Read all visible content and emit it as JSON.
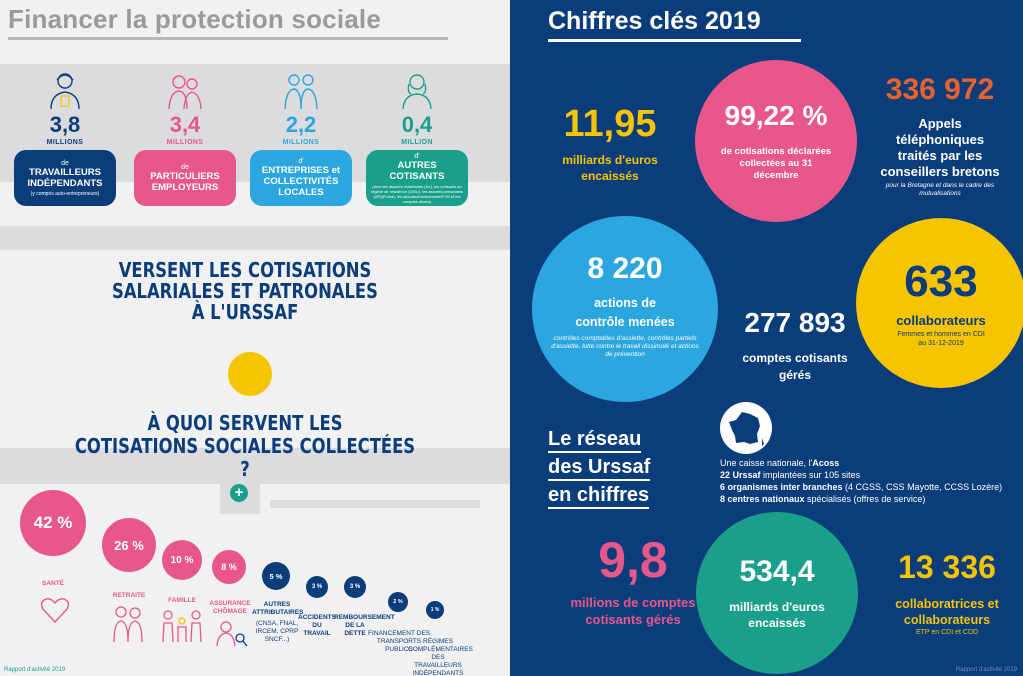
{
  "left": {
    "title": "Financer la protection sociale",
    "payers": [
      {
        "number": "3,8",
        "unit": "MILLIONS",
        "de": "de",
        "label": "TRAVAILLEURS INDÉPENDANTS",
        "sub": "(y compris auto-entrepreneurs)",
        "color": "#0a3d7a",
        "icon": "worker-icon"
      },
      {
        "number": "3,4",
        "unit": "MILLIONS",
        "de": "de",
        "label": "PARTICULIERS EMPLOYEURS",
        "sub": "",
        "color": "#e8578c",
        "icon": "elderly-couple-icon"
      },
      {
        "number": "2,2",
        "unit": "MILLIONS",
        "de": "d'",
        "label": "ENTREPRISES et COLLECTIVITÉS LOCALES",
        "sub": "",
        "color": "#2ca6de",
        "icon": "business-people-icon"
      },
      {
        "number": "0,4",
        "unit": "MILLION",
        "de": "d'",
        "label": "AUTRES COTISANTS",
        "sub": "(dont les assurés volontaires (AV), les cotisants au régime de résidence (CMU), les assurés personnels (AP)(Puma), les laboratoires/industrie/ETM et les comptes divers)",
        "color": "#1aa08a",
        "icon": "woman-icon"
      }
    ],
    "verse_lines": [
      "VERSENT LES COTISATIONS",
      "SALARIALES ET PATRONALES",
      "À L'URSSAF"
    ],
    "quoi_lines": [
      "À QUOI SERVENT LES",
      "COTISATIONS SOCIALES COLLECTÉES ?"
    ],
    "plus": "+",
    "branches": [
      {
        "pct": "42 %",
        "label": "SANTÉ",
        "color": "#e8578c",
        "label_color": "#e8578c"
      },
      {
        "pct": "26 %",
        "label": "RETRAITE",
        "color": "#e8578c",
        "label_color": "#e8578c"
      },
      {
        "pct": "10 %",
        "label": "FAMILLE",
        "color": "#e8578c",
        "label_color": "#e8578c"
      },
      {
        "pct": "8 %",
        "label": "ASSURANCE CHÔMAGE",
        "color": "#e8578c",
        "label_color": "#e8578c"
      },
      {
        "pct": "5 %",
        "label": "AUTRES ATTRIBUTAIRES",
        "sub": "(CNSA, FNAL, IRCEM, CPRP SNCF...)",
        "color": "#0a3d7a",
        "label_color": "#0a3d7a"
      },
      {
        "pct": "3 %",
        "label": "ACCIDENTS DU TRAVAIL",
        "color": "#0a3d7a",
        "label_color": "#0a3d7a"
      },
      {
        "pct": "3 %",
        "label": "REMBOURSEMENT DE LA DETTE",
        "color": "#0a3d7a",
        "label_color": "#0a3d7a"
      },
      {
        "pct": "2 %",
        "label": "FINANCEMENT DES TRANSPORTS PUBLICS",
        "color": "#0a3d7a",
        "label_color": "#0a3d7a"
      },
      {
        "pct": "1 %",
        "label": "RÉGIMES COMPLÉMENTAIRES DES TRAVAILLEURS INDÉPENDANTS",
        "color": "#0a3d7a",
        "label_color": "#0a3d7a"
      }
    ],
    "footer": "Rapport d'activité 2019"
  },
  "right": {
    "title": "Chiffres clés 2019",
    "stats": {
      "euros_value": "11,95",
      "euros_label": "milliards d'euros encaissés",
      "decl_value": "99,22 %",
      "decl_label": "de cotisations déclarées collectées au 31 décembre",
      "calls_value": "336 972",
      "calls_label": "Appels téléphoniques traités par les conseillers bretons",
      "calls_note": "pour la Bretagne et dans le cadre des mutualisations",
      "controls_value": "8 220",
      "controls_label": "actions de contrôle menées",
      "controls_note": "contrôles comptables d'assiette, contrôles partiels d'assiette, lutte contre le travail dissimulé et actions de prévention",
      "accounts_value": "277 893",
      "accounts_label": "comptes cotisants gérés",
      "staff_value": "633",
      "staff_label": "collaborateurs",
      "staff_note": "Femmes et hommes en CDI au 31-12-2019",
      "network_title_lines": [
        "Le réseau",
        "des Urssaf",
        "en chiffres"
      ],
      "network_lines": [
        {
          "normal": "Une caisse nationale, l'",
          "bold": "Acoss",
          "rest": ""
        },
        {
          "normal": "",
          "bold": "22 Urssaf",
          "rest": " implantées sur 105 sites"
        },
        {
          "normal": "",
          "bold": "6 organismes inter branches",
          "rest": " (4 CGSS, CSS Mayotte, CCSS Lozère)"
        },
        {
          "normal": "",
          "bold": "8 centres nationaux",
          "rest": " spécialisés (offres de service)"
        }
      ],
      "millions_value": "9,8",
      "millions_label": "millions de comptes cotisants gérés",
      "billion_value": "534,4",
      "billion_label": "milliards d'euros encaissés",
      "collab_value": "13 336",
      "collab_label": "collaboratrices et collaborateurs",
      "collab_note": "ETP en CDI et CDD"
    },
    "footer": "Rapport d'activité 2019",
    "colors": {
      "navy": "#0a3d7a",
      "pink": "#e8578c",
      "yellow": "#f6c400",
      "sky": "#2ca6de",
      "green": "#1aa08a",
      "orange": "#e9612b"
    }
  }
}
